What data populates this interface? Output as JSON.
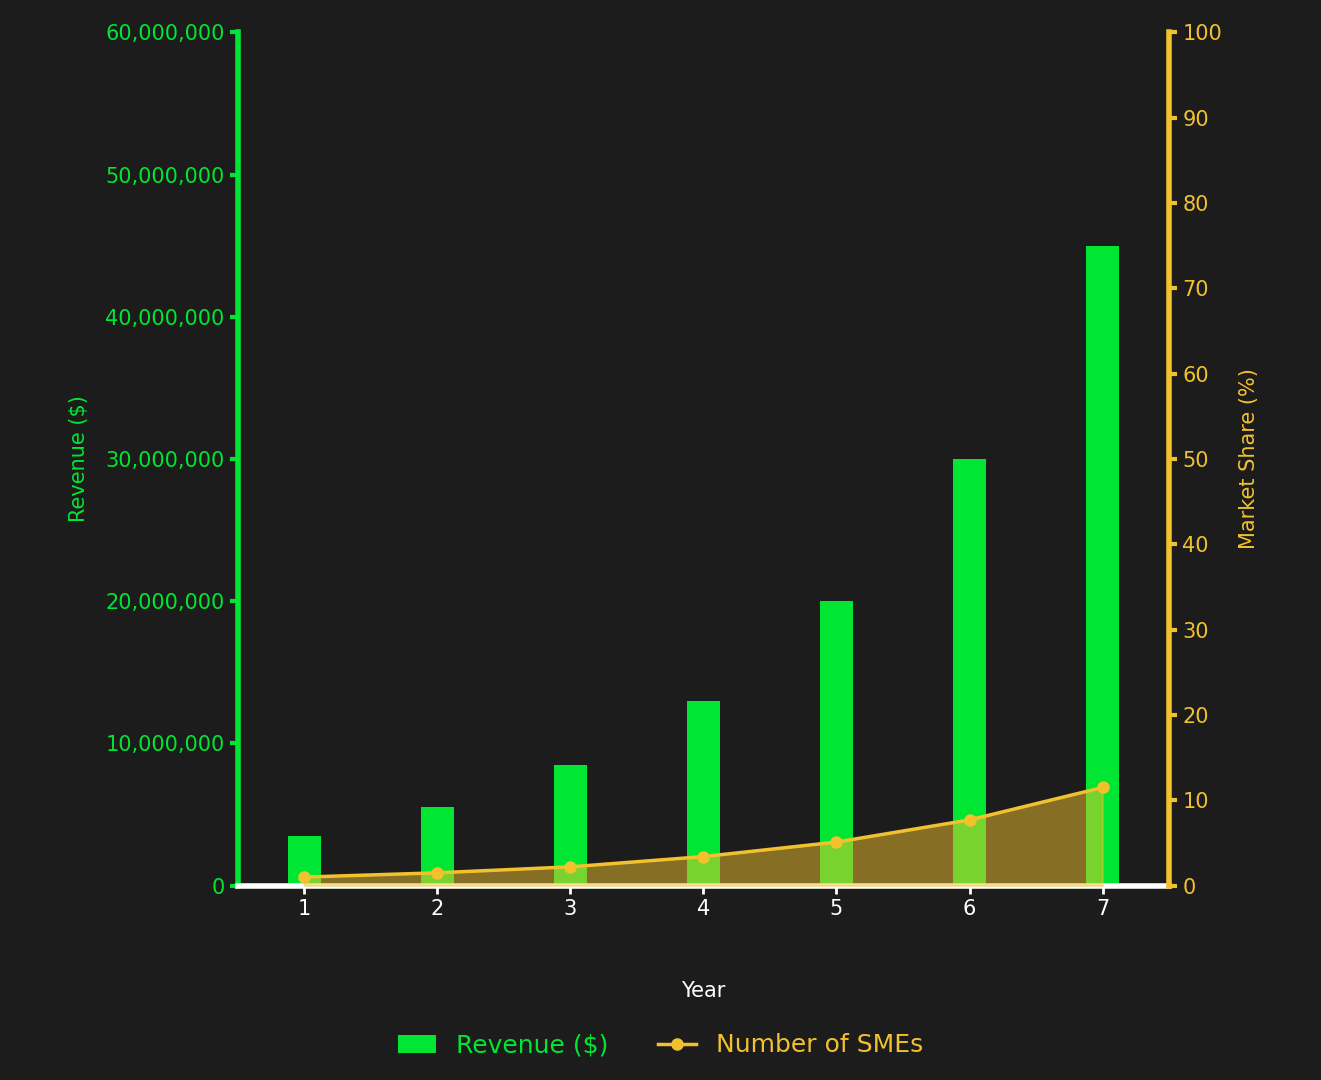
{
  "chart_data": {
    "type": "bar",
    "x_label": "Year",
    "y_label": "Revenue ($)",
    "y2_label": "Market Share (%)",
    "categories": [
      "1",
      "2",
      "3",
      "4",
      "5",
      "6",
      "7"
    ],
    "series": [
      {
        "name": "Revenue ($)",
        "type": "bar",
        "color": "#00e632",
        "values": [
          3500000,
          5500000,
          8500000,
          13000000,
          20000000,
          30000000,
          45000000
        ]
      },
      {
        "name": "Number of SMEs",
        "type": "line",
        "axis": "y2",
        "color": "#f2c12e",
        "marker": "o",
        "values": [
          1.0,
          1.5,
          2.2,
          3.4,
          5.1,
          7.7,
          11.5
        ]
      }
    ],
    "ylim": [
      0,
      60000000
    ],
    "yticks": [
      0,
      {
        "value": 10000000,
        "label": "10,000,000"
      },
      {
        "value": 20000000,
        "label": "20,000,000"
      },
      {
        "value": 30000000,
        "label": "30,000,000"
      },
      {
        "value": 40000000,
        "label": "40,000,000"
      },
      {
        "value": 50000000,
        "label": "50,000,000"
      },
      {
        "value": 60000000,
        "label": "60,000,000"
      }
    ],
    "y2lim": [
      0,
      100
    ],
    "y2ticks": [
      0,
      10,
      20,
      30,
      40,
      50,
      60,
      70,
      80,
      90,
      100
    ],
    "grid": false,
    "legend": "lower center"
  }
}
